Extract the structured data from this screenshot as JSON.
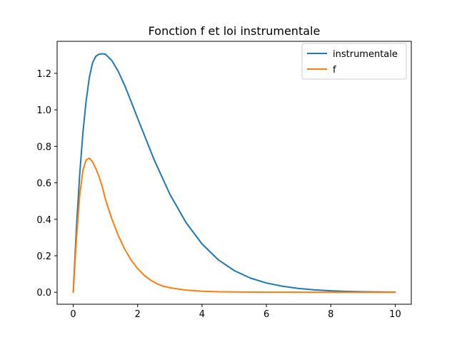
{
  "chart_data": {
    "type": "line",
    "title": "Fonction f et loi instrumentale",
    "xlabel": "",
    "ylabel": "",
    "xlim": [
      -0.5,
      10.5
    ],
    "ylim": [
      -0.0655,
      1.3755
    ],
    "xticks": [
      0,
      2,
      4,
      6,
      8,
      10
    ],
    "xtick_labels": [
      "0",
      "2",
      "4",
      "6",
      "8",
      "10"
    ],
    "yticks": [
      0.0,
      0.2,
      0.4,
      0.6,
      0.8,
      1.0,
      1.2
    ],
    "ytick_labels": [
      "0.0",
      "0.2",
      "0.4",
      "0.6",
      "0.8",
      "1.0",
      "1.2"
    ],
    "grid": false,
    "legend_position": "top-right",
    "series": [
      {
        "name": "instrumentale",
        "color": "#1f77b4",
        "x": [
          0,
          0.1,
          0.2,
          0.3,
          0.4,
          0.5,
          0.6,
          0.7,
          0.8,
          0.9,
          1.0,
          1.2,
          1.4,
          1.6,
          1.8,
          2.0,
          2.5,
          3.0,
          3.5,
          4.0,
          4.5,
          5.0,
          5.5,
          6.0,
          6.5,
          7.0,
          7.5,
          8.0,
          8.5,
          9.0,
          9.5,
          10.0
        ],
        "y": [
          0,
          0.354,
          0.643,
          0.872,
          1.048,
          1.177,
          1.258,
          1.293,
          1.305,
          1.307,
          1.305,
          1.27,
          1.21,
          1.133,
          1.045,
          0.954,
          0.732,
          0.538,
          0.383,
          0.265,
          0.179,
          0.119,
          0.078,
          0.051,
          0.033,
          0.021,
          0.013,
          0.008,
          0.005,
          0.003,
          0.002,
          0.001
        ]
      },
      {
        "name": "f",
        "color": "#ff7f0e",
        "x": [
          0,
          0.1,
          0.2,
          0.3,
          0.4,
          0.5,
          0.6,
          0.7,
          0.8,
          0.9,
          1.0,
          1.2,
          1.4,
          1.6,
          1.8,
          2.0,
          2.2,
          2.4,
          2.6,
          2.8,
          3.0,
          3.5,
          4.0,
          4.5,
          5.0,
          6.0,
          7.0,
          8.0,
          9.0,
          10.0
        ],
        "y": [
          0,
          0.294,
          0.529,
          0.668,
          0.725,
          0.735,
          0.715,
          0.679,
          0.635,
          0.58,
          0.51,
          0.402,
          0.311,
          0.236,
          0.176,
          0.13,
          0.094,
          0.067,
          0.047,
          0.033,
          0.025,
          0.012,
          0.006,
          0.003,
          0.002,
          0.0005,
          0.0002,
          0.0001,
          0.0,
          0.0
        ]
      }
    ]
  }
}
